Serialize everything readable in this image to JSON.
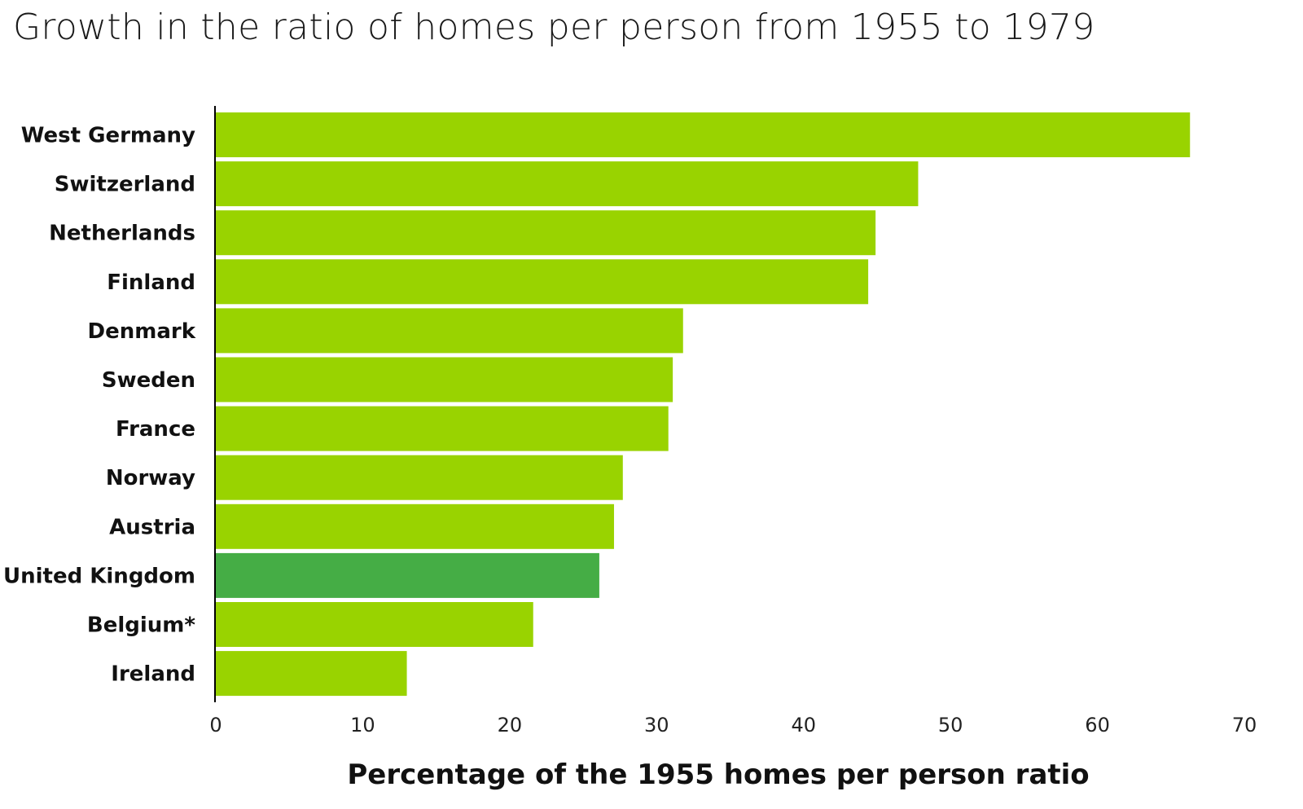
{
  "chart_data": {
    "type": "bar",
    "orientation": "horizontal",
    "title": "Growth in the ratio of homes per person from 1955 to 1979",
    "xlabel": "Percentage of the 1955 homes per person ratio",
    "ylabel": "",
    "xlim": [
      0,
      70
    ],
    "xticks": [
      "0",
      "10",
      "20",
      "30",
      "40",
      "50",
      "60",
      "70"
    ],
    "grid": false,
    "categories": [
      "West Germany",
      "Switzerland",
      "Netherlands",
      "Finland",
      "Denmark",
      "Sweden",
      "France",
      "Norway",
      "Austria",
      "United Kingdom",
      "Belgium*",
      "Ireland"
    ],
    "values": [
      66.3,
      47.8,
      44.9,
      44.4,
      31.8,
      31.1,
      30.8,
      27.7,
      27.1,
      26.1,
      21.6,
      13.0
    ],
    "colors": {
      "default": "#99d300",
      "highlight": "#45ad45",
      "highlight_category": "United Kingdom",
      "axis": "#000000"
    }
  }
}
